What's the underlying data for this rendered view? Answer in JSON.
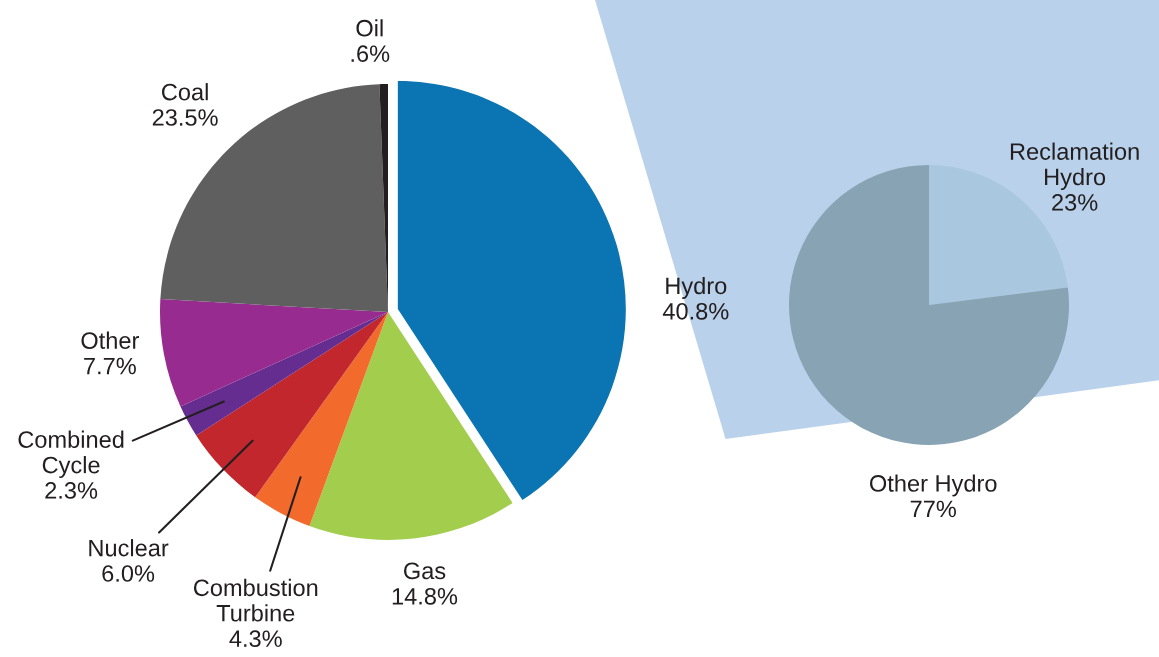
{
  "chart_data": [
    {
      "type": "pie",
      "categories": [
        "Hydro",
        "Gas",
        "Combustion\nTurbine",
        "Nuclear",
        "Combined\nCycle",
        "Other",
        "Coal",
        "Oil"
      ],
      "values": [
        40.8,
        14.8,
        4.3,
        6.0,
        2.3,
        7.7,
        23.5,
        0.6
      ],
      "value_labels": [
        "40.8%",
        "14.8%",
        "4.3%",
        "6.0%",
        "2.3%",
        "7.7%",
        "23.5%",
        ".6%"
      ],
      "colors": [
        "#0b75b3",
        "#a3cd4d",
        "#f26a2c",
        "#c1272d",
        "#662d91",
        "#982b8f",
        "#5f5f60",
        "#231f20"
      ]
    },
    {
      "type": "pie",
      "categories": [
        "Reclamation\nHydro",
        "Other Hydro"
      ],
      "values": [
        23,
        77
      ],
      "value_labels": [
        "23%",
        "77%"
      ],
      "colors": [
        "#a9c8e0",
        "#88a3b3"
      ]
    }
  ]
}
